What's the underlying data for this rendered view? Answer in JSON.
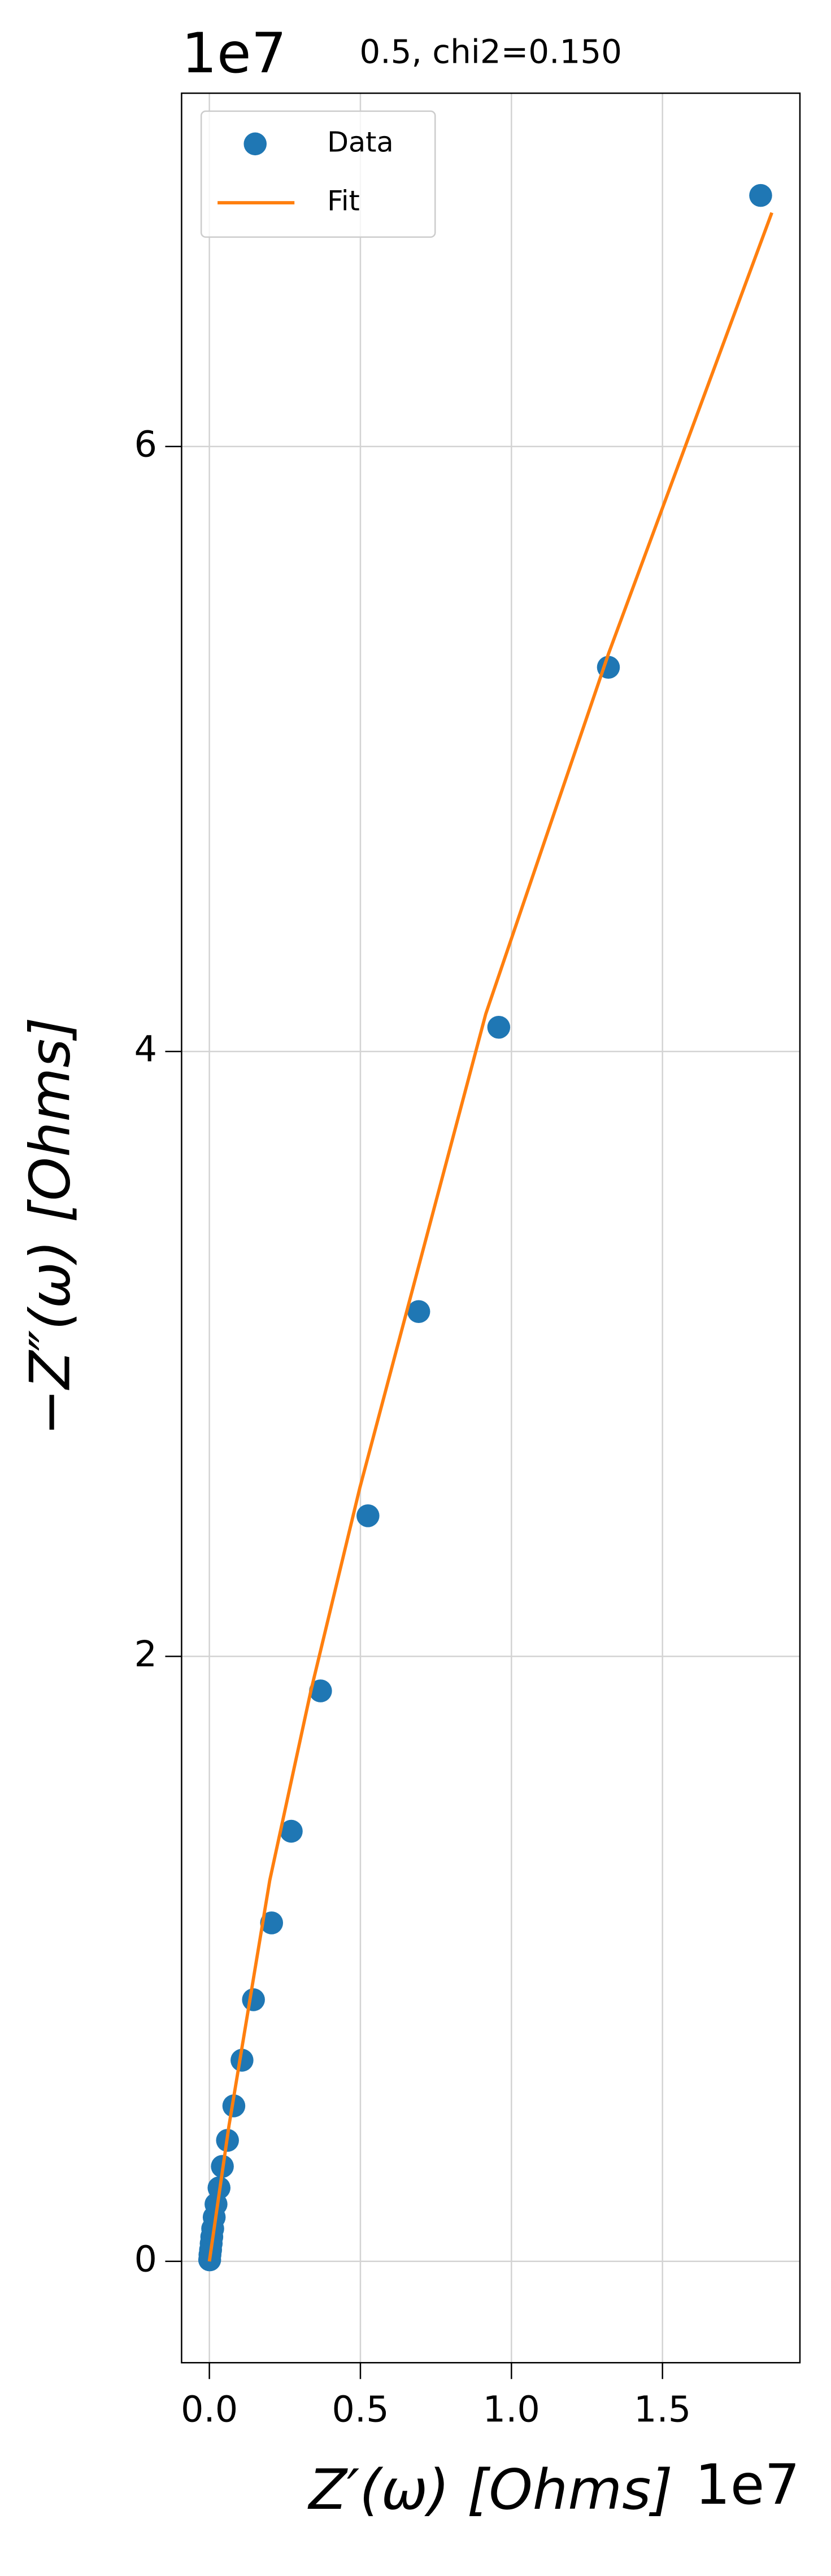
{
  "chart_data": {
    "type": "scatter",
    "title": "0.5, chi2=0.150",
    "x_label": "Z′(ω) [Ohms]",
    "y_label": "−Z″(ω) [Ohms]",
    "x_offset_label": "1e7",
    "y_offset_label": "1e7",
    "xlim": [
      -0.092,
      1.955
    ],
    "ylim": [
      -0.335,
      7.168
    ],
    "xticks": [
      {
        "value": 0,
        "label": "0.0"
      },
      {
        "value": 0.5,
        "label": "0.5"
      },
      {
        "value": 1,
        "label": "1.0"
      },
      {
        "value": 1.5,
        "label": "1.5"
      }
    ],
    "yticks": [
      0,
      2,
      4,
      6
    ],
    "grid": true,
    "legend": "upper left",
    "series": [
      {
        "name": "Data",
        "color": "#1f77b4",
        "style": "marker",
        "x": [
          1.825,
          1.321,
          0.958,
          0.693,
          0.525,
          0.368,
          0.271,
          0.206,
          0.146,
          0.108,
          0.081,
          0.06,
          0.043,
          0.032,
          0.022,
          0.016,
          0.011,
          0.008,
          0.006,
          0.004,
          0.002,
          0.001
        ],
        "values": [
          6.83,
          5.27,
          4.08,
          3.14,
          2.465,
          1.886,
          1.422,
          1.119,
          0.865,
          0.665,
          0.514,
          0.4,
          0.314,
          0.243,
          0.189,
          0.146,
          0.108,
          0.081,
          0.059,
          0.038,
          0.022,
          0.005
        ]
      },
      {
        "name": "Fit",
        "color": "#ff7f0e",
        "style": "line",
        "x": [
          0,
          0.065,
          0.2,
          0.336,
          0.498,
          0.915,
          1.321,
          1.862
        ],
        "values": [
          0,
          0.449,
          1.26,
          1.886,
          2.557,
          4.124,
          5.314,
          6.773
        ]
      }
    ]
  }
}
